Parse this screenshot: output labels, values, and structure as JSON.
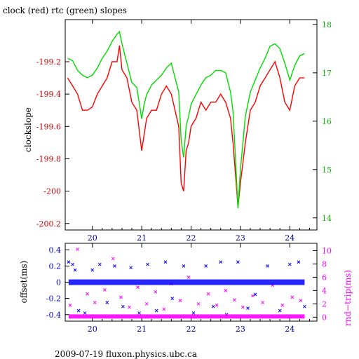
{
  "title": "clock (red) rtc (green) slopes",
  "footer": "2009-07-19 fluxon.physics.ubc.ca",
  "colors": {
    "clock": "#ff0000",
    "rtc": "#00dd00",
    "offset": "#0000ff",
    "rndtrip": "#ff00ff",
    "axis": "#000000"
  },
  "chart_data": [
    {
      "type": "line",
      "title": "clock (red) rtc (green) slopes",
      "ylabel": "clockslope",
      "y2label": "",
      "xlim": [
        19.45,
        24.55
      ],
      "ylim": [
        -200.24,
        -198.94
      ],
      "y2lim": [
        13.75,
        18.1
      ],
      "grid": false,
      "x_ticks": [
        "20",
        "21",
        "22",
        "23",
        "24"
      ],
      "y_ticks": [
        "-199.2",
        "-199.4",
        "-199.6",
        "-199.8",
        "-200",
        "-200.2"
      ],
      "y2_ticks": [
        "18",
        "17",
        "16",
        "15",
        "14"
      ],
      "series": [
        {
          "name": "clock",
          "axis": "left",
          "color": "#ff0000",
          "x": [
            19.5,
            19.6,
            19.7,
            19.8,
            19.9,
            20.0,
            20.1,
            20.2,
            20.3,
            20.4,
            20.5,
            20.55,
            20.6,
            20.7,
            20.8,
            20.9,
            21.0,
            21.05,
            21.1,
            21.2,
            21.3,
            21.4,
            21.5,
            21.6,
            21.75,
            21.8,
            21.85,
            21.9,
            21.95,
            22.0,
            22.1,
            22.2,
            22.3,
            22.4,
            22.5,
            22.6,
            22.7,
            22.8,
            22.85,
            22.9,
            22.95,
            23.0,
            23.1,
            23.2,
            23.3,
            23.4,
            23.5,
            23.6,
            23.7,
            23.8,
            23.9,
            24.0,
            24.1,
            24.2,
            24.3
          ],
          "y": [
            -199.3,
            -199.35,
            -199.4,
            -199.5,
            -199.5,
            -199.48,
            -199.4,
            -199.35,
            -199.3,
            -199.2,
            -199.2,
            -199.1,
            -199.25,
            -199.3,
            -199.45,
            -199.5,
            -199.75,
            -199.65,
            -199.55,
            -199.5,
            -199.5,
            -199.4,
            -199.35,
            -199.4,
            -199.6,
            -199.95,
            -200.0,
            -199.75,
            -199.7,
            -199.6,
            -199.55,
            -199.45,
            -199.5,
            -199.45,
            -199.45,
            -199.4,
            -199.45,
            -199.55,
            -199.7,
            -199.9,
            -200.1,
            -199.95,
            -199.7,
            -199.5,
            -199.45,
            -199.35,
            -199.3,
            -199.25,
            -199.2,
            -199.3,
            -199.45,
            -199.5,
            -199.35,
            -199.3,
            -199.3
          ]
        },
        {
          "name": "rtc",
          "axis": "right",
          "color": "#00dd00",
          "x": [
            19.5,
            19.6,
            19.7,
            19.8,
            19.9,
            20.0,
            20.1,
            20.2,
            20.3,
            20.4,
            20.5,
            20.55,
            20.6,
            20.7,
            20.8,
            20.9,
            21.0,
            21.05,
            21.1,
            21.2,
            21.3,
            21.4,
            21.5,
            21.6,
            21.75,
            21.8,
            21.85,
            21.9,
            21.95,
            22.0,
            22.1,
            22.2,
            22.3,
            22.4,
            22.5,
            22.6,
            22.7,
            22.8,
            22.85,
            22.9,
            22.95,
            23.0,
            23.1,
            23.2,
            23.3,
            23.4,
            23.5,
            23.6,
            23.7,
            23.8,
            23.9,
            24.0,
            24.1,
            24.2,
            24.3
          ],
          "y": [
            17.3,
            17.25,
            17.05,
            16.95,
            16.9,
            16.95,
            17.1,
            17.3,
            17.45,
            17.65,
            17.8,
            17.85,
            17.6,
            17.2,
            16.8,
            16.7,
            16.05,
            16.35,
            16.55,
            16.75,
            16.85,
            16.95,
            17.1,
            17.2,
            16.6,
            15.6,
            15.25,
            15.9,
            16.1,
            16.35,
            16.55,
            16.75,
            16.9,
            16.95,
            17.05,
            17.05,
            17.0,
            16.6,
            16.2,
            15.2,
            14.2,
            15.0,
            16.1,
            16.6,
            16.85,
            17.1,
            17.3,
            17.55,
            17.6,
            17.5,
            17.2,
            16.85,
            17.15,
            17.35,
            17.4
          ]
        }
      ]
    },
    {
      "type": "scatter",
      "ylabel": "offset(ms)",
      "y2label": "rnd−trip(ms)",
      "xlim": [
        19.45,
        24.55
      ],
      "ylim": [
        -0.48,
        0.48
      ],
      "y2lim": [
        -0.6,
        11.1
      ],
      "grid": false,
      "x_ticks": [
        "20",
        "21",
        "22",
        "23",
        "24"
      ],
      "y_ticks": [
        "0.4",
        "0.2",
        "0",
        "-0.2",
        "-0.4"
      ],
      "y2_ticks": [
        "10",
        "8",
        "6",
        "4",
        "2",
        "0"
      ],
      "series": [
        {
          "name": "offset",
          "axis": "left",
          "color": "#0000ff",
          "x": [
            19.52,
            19.6,
            19.65,
            19.72,
            19.85,
            20.0,
            20.15,
            20.3,
            20.45,
            20.62,
            20.78,
            20.95,
            21.12,
            21.3,
            21.48,
            21.62,
            21.85,
            22.05,
            22.3,
            22.45,
            22.6,
            22.72,
            22.95,
            23.15,
            23.3,
            23.55,
            23.8,
            24.0,
            24.18,
            24.3
          ],
          "y": [
            0.25,
            0.22,
            0.15,
            -0.35,
            -0.38,
            0.15,
            0.22,
            -0.25,
            0.2,
            -0.3,
            0.18,
            -0.38,
            0.22,
            -0.35,
            0.25,
            -0.2,
            0.2,
            -0.38,
            0.2,
            -0.3,
            0.25,
            -0.4,
            0.25,
            -0.32,
            -0.15,
            0.2,
            -0.35,
            0.22,
            0.25,
            -0.3
          ]
        },
        {
          "name": "rnd-trip",
          "axis": "right",
          "color": "#ff00ff",
          "x": [
            19.55,
            19.7,
            19.9,
            20.05,
            20.25,
            20.42,
            20.58,
            20.75,
            20.92,
            21.1,
            21.28,
            21.45,
            21.6,
            21.78,
            21.95,
            22.15,
            22.35,
            22.52,
            22.7,
            22.88,
            23.05,
            23.25,
            23.45,
            23.65,
            23.85,
            24.05,
            24.22
          ],
          "y": [
            1.8,
            10.2,
            3.5,
            2.2,
            4.1,
            8.8,
            3.0,
            1.5,
            4.5,
            2.0,
            3.8,
            1.2,
            5.0,
            2.5,
            6.0,
            2.0,
            3.5,
            1.8,
            4.0,
            2.6,
            1.5,
            3.2,
            2.2,
            4.8,
            1.8,
            3.0,
            2.5
          ]
        }
      ]
    }
  ]
}
